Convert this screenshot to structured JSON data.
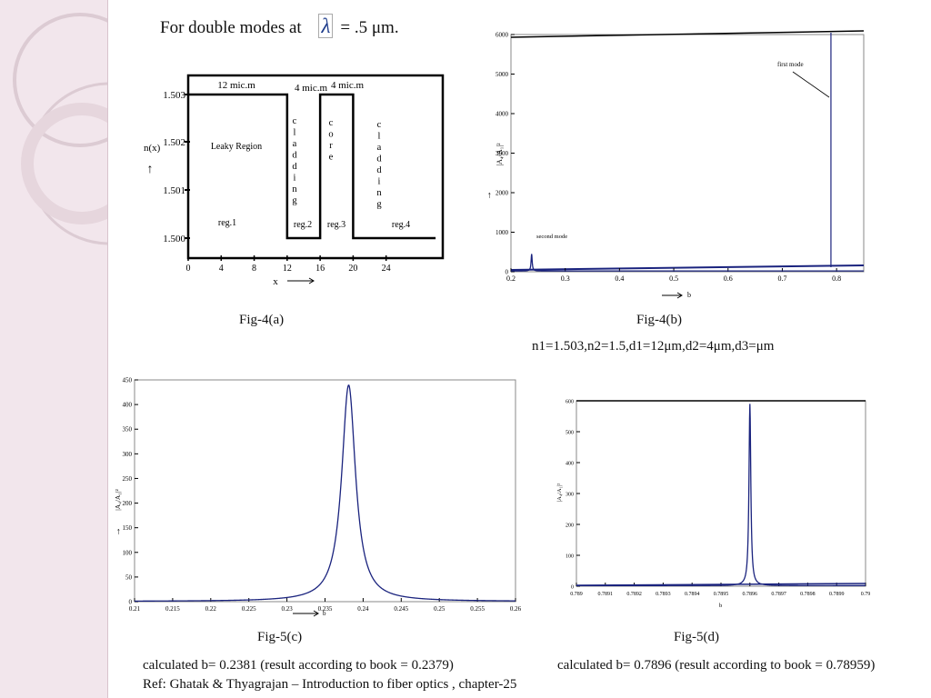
{
  "slide": {
    "title_prefix": "For  double modes at",
    "title_suffix": "= .5 μm.",
    "lambda_symbol": "λ",
    "params": "n1=1.503,n2=1.5,d1=12μm,d2=4μm,d3=μm",
    "calc_c": "calculated b= 0.2381 (result according to book = 0.2379)",
    "calc_d": "calculated b= 0.7896 (result according to book = 0.78959)",
    "ref": "Ref: Ghatak & Thyagrajan – Introduction to fiber optics , chapter-25"
  },
  "colors": {
    "sidebar": "#f2e6ec",
    "ring": "#dccbd3",
    "curve": "#1a237e",
    "axis": "#000000"
  },
  "chart_data": [
    {
      "type": "diagram",
      "caption": "Fig-4(a)",
      "ylabel": "n(x)",
      "xlabel": "x",
      "y_ticks": [
        "1.503",
        "1.502",
        "1.501",
        "1.500"
      ],
      "x_ticks": [
        "0",
        "4",
        "8",
        "12",
        "16",
        "20",
        "24"
      ],
      "profile": [
        [
          0,
          1.503
        ],
        [
          12,
          1.503
        ],
        [
          12,
          1.5
        ],
        [
          16,
          1.5
        ],
        [
          16,
          1.503
        ],
        [
          20,
          1.503
        ],
        [
          20,
          1.5
        ],
        [
          30,
          1.5
        ]
      ],
      "widths": [
        "12 mic.m",
        "4 mic.m",
        "4 mic.m"
      ],
      "leaky_label": "Leaky Region",
      "vertical_words": [
        "cladding",
        "core",
        "cladding"
      ],
      "regions": [
        "reg.1",
        "reg.2",
        "reg.3",
        "reg.4"
      ]
    },
    {
      "type": "line",
      "caption": "Fig-4(b)",
      "xlabel": "b",
      "ylabel": "|A₄/A₁|²",
      "xlim": [
        0.2,
        0.85
      ],
      "ylim": [
        0,
        6000
      ],
      "x_ticks": [
        "0.2",
        "0.3",
        "0.4",
        "0.5",
        "0.6",
        "0.7",
        "0.8"
      ],
      "y_ticks": [
        "0",
        "1000",
        "2000",
        "3000",
        "4000",
        "5000",
        "6000"
      ],
      "peaks": [
        {
          "x": 0.2381,
          "y": 430,
          "label": "second mode"
        },
        {
          "x": 0.7896,
          "y": 5900,
          "label": "first mode"
        }
      ]
    },
    {
      "type": "line",
      "caption": "Fig-5(c)",
      "xlabel": "b",
      "ylabel": "|A₄/A₁|²",
      "xlim": [
        0.21,
        0.26
      ],
      "ylim": [
        0,
        450
      ],
      "x_ticks": [
        "0.21",
        "0.215",
        "0.22",
        "0.225",
        "0.23",
        "0.235",
        "0.24",
        "0.245",
        "0.25",
        "0.255",
        "0.26"
      ],
      "y_ticks": [
        "0",
        "50",
        "100",
        "150",
        "200",
        "250",
        "300",
        "350",
        "400",
        "450"
      ],
      "peak": {
        "x": 0.2381,
        "y": 440
      }
    },
    {
      "type": "line",
      "caption": "Fig-5(d)",
      "xlabel": "b",
      "ylabel": "|A₄/A₁|²",
      "xlim": [
        0.789,
        0.79
      ],
      "ylim": [
        0,
        600
      ],
      "x_ticks": [
        "0.789",
        "0.7891",
        "0.7892",
        "0.7893",
        "0.7894",
        "0.7895",
        "0.7896",
        "0.7897",
        "0.7898",
        "0.7899",
        "0.79"
      ],
      "y_ticks": [
        "0",
        "100",
        "200",
        "300",
        "400",
        "500",
        "600"
      ],
      "peak": {
        "x": 0.7896,
        "y": 590
      }
    }
  ]
}
